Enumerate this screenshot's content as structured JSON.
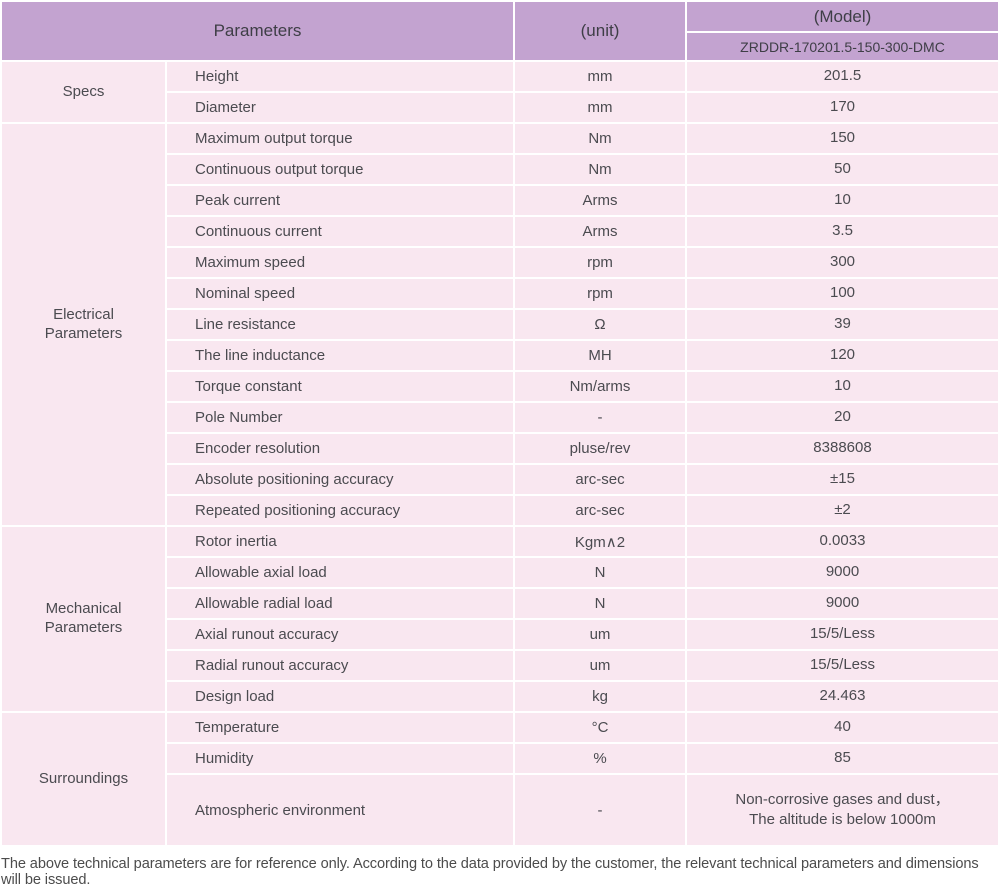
{
  "header": {
    "parameters_label": "Parameters",
    "unit_label": "(unit)",
    "model_label": "(Model)",
    "model_value": "ZRDDR-170201.5-150-300-DMC"
  },
  "colors": {
    "header_bg": "#c3a3d0",
    "cell_bg": "#f9e7f0",
    "grid_line": "#ffffff",
    "text": "#4b4b50"
  },
  "sections": [
    {
      "label": "Specs",
      "rows": [
        {
          "name": "Height",
          "unit": "mm",
          "value": "201.5"
        },
        {
          "name": "Diameter",
          "unit": "mm",
          "value": "170"
        }
      ]
    },
    {
      "label": "Electrical Parameters",
      "rows": [
        {
          "name": "Maximum output torque",
          "unit": "Nm",
          "value": "150"
        },
        {
          "name": "Continuous output torque",
          "unit": "Nm",
          "value": "50"
        },
        {
          "name": "Peak current",
          "unit": "Arms",
          "value": "10"
        },
        {
          "name": "Continuous current",
          "unit": "Arms",
          "value": "3.5"
        },
        {
          "name": "Maximum speed",
          "unit": "rpm",
          "value": "300"
        },
        {
          "name": "Nominal speed",
          "unit": "rpm",
          "value": "100"
        },
        {
          "name": "Line resistance",
          "unit": "Ω",
          "value": "39"
        },
        {
          "name": "The line inductance",
          "unit": "MH",
          "value": "120"
        },
        {
          "name": "Torque constant",
          "unit": "Nm/arms",
          "value": "10"
        },
        {
          "name": "Pole Number",
          "unit": "-",
          "value": "20"
        },
        {
          "name": "Encoder resolution",
          "unit": "pluse/rev",
          "value": "8388608"
        },
        {
          "name": "Absolute positioning accuracy",
          "unit": "arc-sec",
          "value": "±15"
        },
        {
          "name": "Repeated positioning accuracy",
          "unit": "arc-sec",
          "value": "±2"
        }
      ]
    },
    {
      "label": "Mechanical Parameters",
      "rows": [
        {
          "name": "Rotor inertia",
          "unit": "Kgm∧2",
          "value": "0.0033"
        },
        {
          "name": "Allowable axial load",
          "unit": "N",
          "value": "9000"
        },
        {
          "name": "Allowable radial load",
          "unit": "N",
          "value": "9000"
        },
        {
          "name": "Axial runout accuracy",
          "unit": "um",
          "value": "15/5/Less"
        },
        {
          "name": "Radial runout accuracy",
          "unit": "um",
          "value": "15/5/Less"
        },
        {
          "name": "Design load",
          "unit": "kg",
          "value": "24.463"
        }
      ]
    },
    {
      "label": "Surroundings",
      "rows": [
        {
          "name": "Temperature",
          "unit": "°C",
          "value": "40"
        },
        {
          "name": "Humidity",
          "unit": "%",
          "value": "85"
        },
        {
          "name": "Atmospheric environment",
          "unit": "-",
          "value": "Non-corrosive gases and dust，\nThe altitude is below 1000m"
        }
      ]
    }
  ],
  "footer_note": "The above technical parameters are for reference only. According to the data provided by the customer, the relevant technical parameters and dimensions will be issued."
}
